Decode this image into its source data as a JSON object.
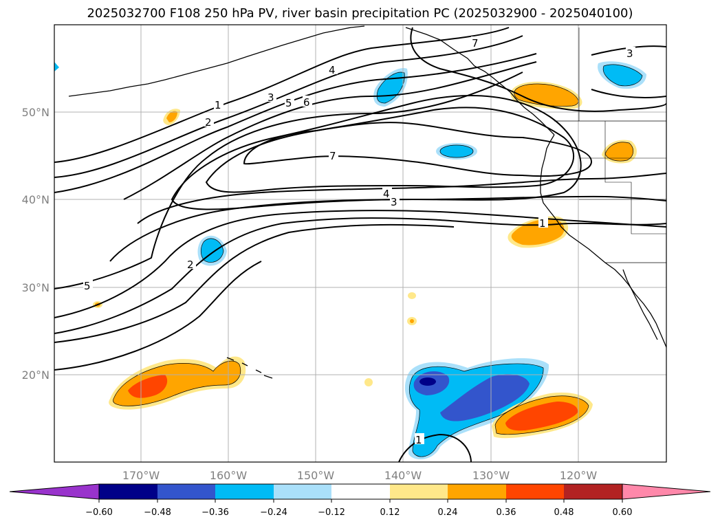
{
  "title": "2025032700 F108 250 hPa PV, river basin precipitation PC (2025032900 - 2025040100)",
  "lat_labels": [
    "50°N",
    "40°N",
    "30°N",
    "20°N"
  ],
  "lon_labels": [
    "170°W",
    "160°W",
    "150°W",
    "140°W",
    "130°W",
    "120°W"
  ],
  "contour_labels": [
    "1",
    "2",
    "3",
    "4",
    "5",
    "6",
    "7",
    "7",
    "4",
    "3",
    "5",
    "2",
    "3",
    "1",
    "1"
  ],
  "colorbar": {
    "ticks": [
      "−0.60",
      "−0.48",
      "−0.36",
      "−0.24",
      "−0.12",
      "0.12",
      "0.24",
      "0.36",
      "0.48",
      "0.60"
    ],
    "colors": [
      "#9933cc",
      "#000088",
      "#3355cc",
      "#00bbf5",
      "#aae0fa",
      "#ffffff",
      "#ffe88a",
      "#ffa500",
      "#ff4500",
      "#b22222",
      "#ff88aa"
    ]
  },
  "legend_colors": {
    "neg_very_high": "#000088",
    "neg_high": "#3355cc",
    "neg_mid": "#00bbf5",
    "neg_low": "#aae0fa",
    "pos_low": "#ffe88a",
    "pos_mid": "#ffa500",
    "pos_high": "#ff4500"
  }
}
